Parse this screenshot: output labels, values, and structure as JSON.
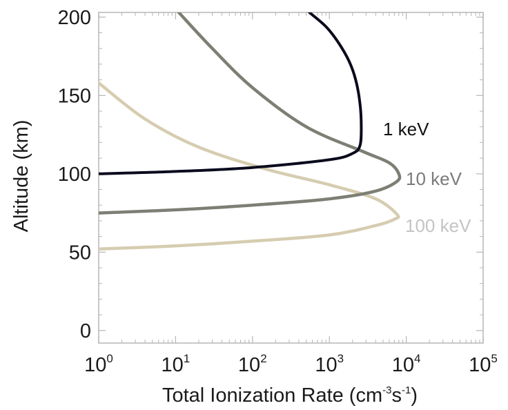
{
  "chart_data": {
    "type": "line",
    "xlabel": "Total Ionization Rate (cm",
    "xlabel_exp1": "-3",
    "xlabel_mid": "s",
    "xlabel_exp2": "-1",
    "xlabel_end": ")",
    "ylabel": "Altitude (km)",
    "xscale": "log",
    "xlim": [
      1,
      100000
    ],
    "ylim": [
      -8,
      203
    ],
    "grid": false,
    "x_ticks": [
      {
        "base": "10",
        "exp": "0",
        "value": 1
      },
      {
        "base": "10",
        "exp": "1",
        "value": 10
      },
      {
        "base": "10",
        "exp": "2",
        "value": 100
      },
      {
        "base": "10",
        "exp": "3",
        "value": 1000
      },
      {
        "base": "10",
        "exp": "4",
        "value": 10000
      },
      {
        "base": "10",
        "exp": "5",
        "value": 100000
      }
    ],
    "y_ticks": [
      {
        "label": "0",
        "value": 0
      },
      {
        "label": "50",
        "value": 50
      },
      {
        "label": "100",
        "value": 100
      },
      {
        "label": "150",
        "value": 150
      },
      {
        "label": "200",
        "value": 200
      }
    ],
    "series": [
      {
        "name": "1 keV",
        "color": "#0b0b1e",
        "label_color": "#111111",
        "x": [
          1,
          10,
          100,
          1000,
          2000,
          2500,
          2600,
          2500,
          2200,
          1800,
          1300,
          900,
          550
        ],
        "y": [
          100,
          101.5,
          104,
          109,
          113,
          118,
          130,
          145,
          160,
          172,
          184,
          194,
          203
        ]
      },
      {
        "name": "10 keV",
        "color": "#7c7f74",
        "label_color": "#7a7a7a",
        "x": [
          1,
          10,
          100,
          1000,
          4000,
          7500,
          8000,
          6000,
          2800,
          500,
          100,
          30,
          11
        ],
        "y": [
          75,
          77,
          80,
          84,
          89,
          95,
          100,
          107,
          114,
          130,
          155,
          180,
          203
        ]
      },
      {
        "name": "100 keV",
        "color": "#d6ccb0",
        "label_color": "#c4c4c4",
        "x": [
          1,
          10,
          100,
          1000,
          4000,
          7000,
          7600,
          4000,
          1000,
          150,
          20,
          4,
          1
        ],
        "y": [
          52,
          54,
          57,
          61,
          67,
          71,
          74,
          84,
          93,
          103,
          117,
          135,
          158
        ]
      }
    ]
  }
}
